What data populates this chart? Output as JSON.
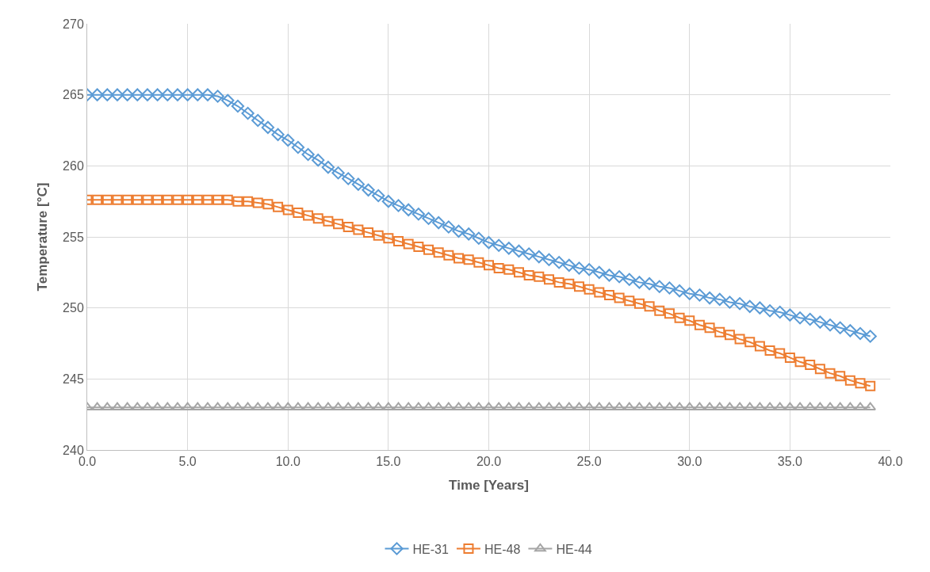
{
  "chart_data": {
    "type": "line",
    "xlabel": "Time [Years]",
    "ylabel": "Temperature [°C]",
    "x": [
      0,
      0.5,
      1,
      1.5,
      2,
      2.5,
      3,
      3.5,
      4,
      4.5,
      5,
      5.5,
      6,
      6.5,
      7,
      7.5,
      8,
      8.5,
      9,
      9.5,
      10,
      10.5,
      11,
      11.5,
      12,
      12.5,
      13,
      13.5,
      14,
      14.5,
      15,
      15.5,
      16,
      16.5,
      17,
      17.5,
      18,
      18.5,
      19,
      19.5,
      20,
      20.5,
      21,
      21.5,
      22,
      22.5,
      23,
      23.5,
      24,
      24.5,
      25,
      25.5,
      26,
      26.5,
      27,
      27.5,
      28,
      28.5,
      29,
      29.5,
      30,
      30.5,
      31,
      31.5,
      32,
      32.5,
      33,
      33.5,
      34,
      34.5,
      35,
      35.5,
      36,
      36.5,
      37,
      37.5,
      38,
      38.5,
      39
    ],
    "series": [
      {
        "name": "HE-31",
        "color": "#5b9bd5",
        "marker": "diamond",
        "values": [
          265,
          265,
          265,
          265,
          265,
          265,
          265,
          265,
          265,
          265,
          265,
          265,
          265,
          264.9,
          264.6,
          264.2,
          263.7,
          263.2,
          262.7,
          262.2,
          261.8,
          261.3,
          260.8,
          260.4,
          259.9,
          259.5,
          259.1,
          258.7,
          258.3,
          257.9,
          257.5,
          257.2,
          256.9,
          256.6,
          256.3,
          256.0,
          255.7,
          255.4,
          255.2,
          254.9,
          254.6,
          254.4,
          254.2,
          254.0,
          253.8,
          253.6,
          253.4,
          253.2,
          253.0,
          252.8,
          252.7,
          252.5,
          252.3,
          252.2,
          252.0,
          251.8,
          251.7,
          251.5,
          251.4,
          251.2,
          251.0,
          250.9,
          250.7,
          250.6,
          250.4,
          250.3,
          250.1,
          250.0,
          249.8,
          249.7,
          249.5,
          249.3,
          249.2,
          249.0,
          248.8,
          248.6,
          248.4,
          248.2,
          248.0
        ]
      },
      {
        "name": "HE-48",
        "color": "#ed7d31",
        "marker": "square",
        "values": [
          257.6,
          257.6,
          257.6,
          257.6,
          257.6,
          257.6,
          257.6,
          257.6,
          257.6,
          257.6,
          257.6,
          257.6,
          257.6,
          257.6,
          257.6,
          257.5,
          257.5,
          257.4,
          257.3,
          257.1,
          256.9,
          256.7,
          256.5,
          256.3,
          256.1,
          255.9,
          255.7,
          255.5,
          255.3,
          255.1,
          254.9,
          254.7,
          254.5,
          254.3,
          254.1,
          253.9,
          253.7,
          253.5,
          253.4,
          253.2,
          253.0,
          252.8,
          252.7,
          252.5,
          252.3,
          252.2,
          252.0,
          251.8,
          251.7,
          251.5,
          251.3,
          251.1,
          250.9,
          250.7,
          250.5,
          250.3,
          250.1,
          249.8,
          249.6,
          249.3,
          249.1,
          248.8,
          248.6,
          248.3,
          248.1,
          247.8,
          247.6,
          247.3,
          247.0,
          246.8,
          246.5,
          246.2,
          246.0,
          245.7,
          245.4,
          245.2,
          244.9,
          244.7,
          244.5
        ]
      },
      {
        "name": "HE-44",
        "color": "#a5a5a5",
        "marker": "triangle",
        "values": [
          243,
          243,
          243,
          243,
          243,
          243,
          243,
          243,
          243,
          243,
          243,
          243,
          243,
          243,
          243,
          243,
          243,
          243,
          243,
          243,
          243,
          243,
          243,
          243,
          243,
          243,
          243,
          243,
          243,
          243,
          243,
          243,
          243,
          243,
          243,
          243,
          243,
          243,
          243,
          243,
          243,
          243,
          243,
          243,
          243,
          243,
          243,
          243,
          243,
          243,
          243,
          243,
          243,
          243,
          243,
          243,
          243,
          243,
          243,
          243,
          243,
          243,
          243,
          243,
          243,
          243,
          243,
          243,
          243,
          243,
          243,
          243,
          243,
          243,
          243,
          243,
          243,
          243,
          243
        ]
      }
    ],
    "xlim": [
      0,
      40
    ],
    "xticks": [
      {
        "value": 0,
        "label": "0.0"
      },
      {
        "value": 5,
        "label": "5.0"
      },
      {
        "value": 10,
        "label": "10.0"
      },
      {
        "value": 15,
        "label": "15.0"
      },
      {
        "value": 20,
        "label": "20.0"
      },
      {
        "value": 25,
        "label": "25.0"
      },
      {
        "value": 30,
        "label": "30.0"
      },
      {
        "value": 35,
        "label": "35.0"
      },
      {
        "value": 40,
        "label": "40.0"
      }
    ],
    "ylim": [
      240,
      270
    ],
    "yticks": [
      240,
      245,
      250,
      255,
      260,
      265,
      270
    ],
    "grid": true,
    "legend": "bottom"
  }
}
